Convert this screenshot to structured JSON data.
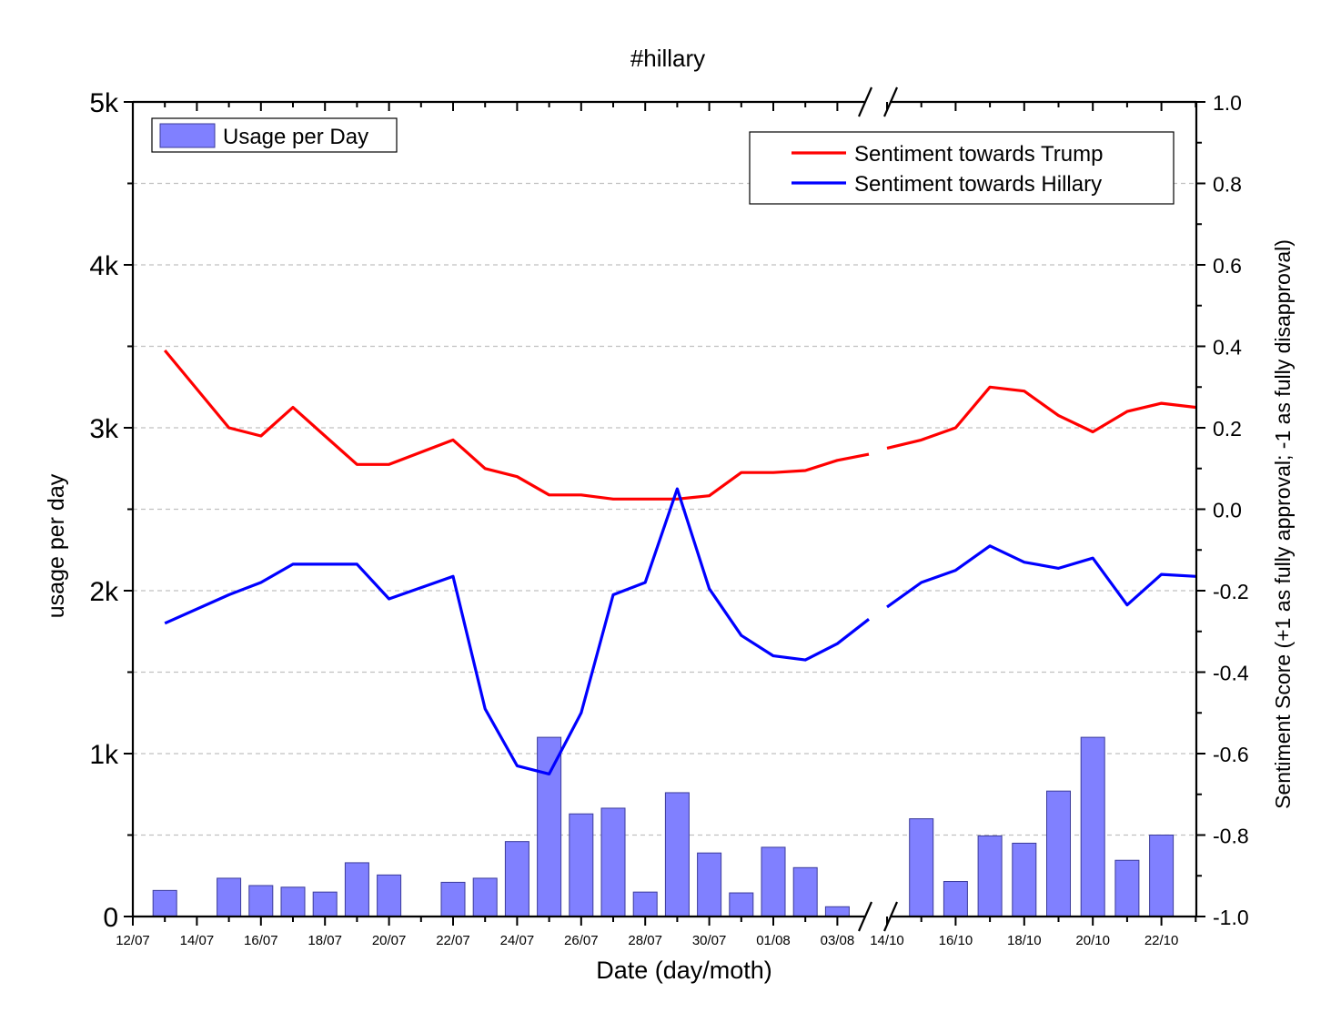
{
  "chart_data": {
    "type": "bar+line",
    "title": "#hillary",
    "xlabel": "Date (day/moth)",
    "ylabel_left": "usage per day",
    "ylabel_right": "Sentiment Score (+1 as fully approval; -1 as fully disapproval)",
    "ylim_left": [
      0,
      5000
    ],
    "ylim_right": [
      -1.0,
      1.0
    ],
    "yticks_left": [
      {
        "value": 0,
        "label": "0"
      },
      {
        "value": 1000,
        "label": "1k"
      },
      {
        "value": 2000,
        "label": "2k"
      },
      {
        "value": 3000,
        "label": "3k"
      },
      {
        "value": 4000,
        "label": "4k"
      },
      {
        "value": 5000,
        "label": "5k"
      }
    ],
    "yticks_right": [
      "1.0",
      "0.8",
      "0.6",
      "0.4",
      "0.2",
      "0.0",
      "-0.2",
      "-0.4",
      "-0.6",
      "-0.8",
      "-1.0"
    ],
    "axis_break": {
      "after": "03/08",
      "before": "14/10"
    },
    "segment1": {
      "start_date": "12/07",
      "end_date": "03/08",
      "tick_labels": [
        "12/07",
        "14/07",
        "16/07",
        "18/07",
        "20/07",
        "22/07",
        "24/07",
        "26/07",
        "28/07",
        "30/07",
        "01/08",
        "03/08"
      ]
    },
    "segment2": {
      "start_date": "14/10",
      "end_date": "22/10",
      "tick_labels": [
        "14/10",
        "16/10",
        "18/10",
        "20/10",
        "22/10"
      ]
    },
    "grid": true,
    "grid_style": "dashed horizontal",
    "bars": {
      "name": "Usage per Day",
      "color": "#8080ff",
      "segment1": [
        {
          "date": "13/07",
          "value": 160
        },
        {
          "date": "14/07",
          "value": 0
        },
        {
          "date": "15/07",
          "value": 235
        },
        {
          "date": "16/07",
          "value": 190
        },
        {
          "date": "17/07",
          "value": 180
        },
        {
          "date": "18/07",
          "value": 150
        },
        {
          "date": "19/07",
          "value": 330
        },
        {
          "date": "20/07",
          "value": 255
        },
        {
          "date": "21/07",
          "value": 0
        },
        {
          "date": "22/07",
          "value": 210
        },
        {
          "date": "23/07",
          "value": 235
        },
        {
          "date": "24/07",
          "value": 460
        },
        {
          "date": "25/07",
          "value": 1100
        },
        {
          "date": "26/07",
          "value": 630
        },
        {
          "date": "27/07",
          "value": 665
        },
        {
          "date": "28/07",
          "value": 150
        },
        {
          "date": "29/07",
          "value": 760
        },
        {
          "date": "30/07",
          "value": 390
        },
        {
          "date": "31/07",
          "value": 145
        },
        {
          "date": "01/08",
          "value": 425
        },
        {
          "date": "02/08",
          "value": 300
        },
        {
          "date": "03/08",
          "value": 60
        }
      ],
      "segment2": [
        {
          "date": "15/10",
          "value": 600
        },
        {
          "date": "16/10",
          "value": 215
        },
        {
          "date": "17/10",
          "value": 495
        },
        {
          "date": "18/10",
          "value": 450
        },
        {
          "date": "19/10",
          "value": 770
        },
        {
          "date": "20/10",
          "value": 1100
        },
        {
          "date": "21/10",
          "value": 345
        },
        {
          "date": "22/10",
          "value": 500
        }
      ]
    },
    "series": [
      {
        "name": "Sentiment towards Trump",
        "color": "#ff0000",
        "segment1": [
          {
            "date": "13/07",
            "value": 0.39
          },
          {
            "date": "15/07",
            "value": 0.2
          },
          {
            "date": "16/07",
            "value": 0.18
          },
          {
            "date": "17/07",
            "value": 0.25
          },
          {
            "date": "18/07",
            "value": 0.18
          },
          {
            "date": "19/07",
            "value": 0.11
          },
          {
            "date": "20/07",
            "value": 0.11
          },
          {
            "date": "22/07",
            "value": 0.17
          },
          {
            "date": "23/07",
            "value": 0.1
          },
          {
            "date": "24/07",
            "value": 0.08
          },
          {
            "date": "25/07",
            "value": 0.035
          },
          {
            "date": "26/07",
            "value": 0.035
          },
          {
            "date": "27/07",
            "value": 0.025
          },
          {
            "date": "28/07",
            "value": 0.025
          },
          {
            "date": "29/07",
            "value": 0.025
          },
          {
            "date": "30/07",
            "value": 0.033
          },
          {
            "date": "31/07",
            "value": 0.09
          },
          {
            "date": "01/08",
            "value": 0.09
          },
          {
            "date": "02/08",
            "value": 0.095
          },
          {
            "date": "03/08",
            "value": 0.12
          },
          {
            "date": "03/08",
            "value": 0.135
          }
        ],
        "segment2": [
          {
            "date": "14/10",
            "value": 0.15
          },
          {
            "date": "15/10",
            "value": 0.17
          },
          {
            "date": "16/10",
            "value": 0.2
          },
          {
            "date": "17/10",
            "value": 0.3
          },
          {
            "date": "18/10",
            "value": 0.29
          },
          {
            "date": "19/10",
            "value": 0.23
          },
          {
            "date": "20/10",
            "value": 0.19
          },
          {
            "date": "21/10",
            "value": 0.24
          },
          {
            "date": "22/10",
            "value": 0.26
          },
          {
            "date": "22/10",
            "value": 0.25
          }
        ]
      },
      {
        "name": "Sentiment towards Hillary",
        "color": "#0000ff",
        "segment1": [
          {
            "date": "13/07",
            "value": -0.28
          },
          {
            "date": "15/07",
            "value": -0.21
          },
          {
            "date": "16/07",
            "value": -0.18
          },
          {
            "date": "17/07",
            "value": -0.135
          },
          {
            "date": "18/07",
            "value": -0.135
          },
          {
            "date": "19/07",
            "value": -0.135
          },
          {
            "date": "20/07",
            "value": -0.22
          },
          {
            "date": "22/07",
            "value": -0.165
          },
          {
            "date": "23/07",
            "value": -0.49
          },
          {
            "date": "24/07",
            "value": -0.63
          },
          {
            "date": "25/07",
            "value": -0.65
          },
          {
            "date": "26/07",
            "value": -0.5
          },
          {
            "date": "27/07",
            "value": -0.21
          },
          {
            "date": "28/07",
            "value": -0.18
          },
          {
            "date": "29/07",
            "value": 0.05
          },
          {
            "date": "30/07",
            "value": -0.195
          },
          {
            "date": "31/07",
            "value": -0.31
          },
          {
            "date": "01/08",
            "value": -0.36
          },
          {
            "date": "02/08",
            "value": -0.37
          },
          {
            "date": "03/08",
            "value": -0.33
          },
          {
            "date": "03/08",
            "value": -0.27
          }
        ],
        "segment2": [
          {
            "date": "14/10",
            "value": -0.24
          },
          {
            "date": "15/10",
            "value": -0.18
          },
          {
            "date": "16/10",
            "value": -0.15
          },
          {
            "date": "17/10",
            "value": -0.09
          },
          {
            "date": "18/10",
            "value": -0.13
          },
          {
            "date": "19/10",
            "value": -0.145
          },
          {
            "date": "20/10",
            "value": -0.12
          },
          {
            "date": "21/10",
            "value": -0.235
          },
          {
            "date": "22/10",
            "value": -0.16
          },
          {
            "date": "22/10",
            "value": -0.165
          }
        ]
      }
    ],
    "legend_bars": {
      "label": "Usage per Day",
      "placement": "top-left"
    },
    "legend_lines": {
      "placement": "top-right"
    }
  }
}
